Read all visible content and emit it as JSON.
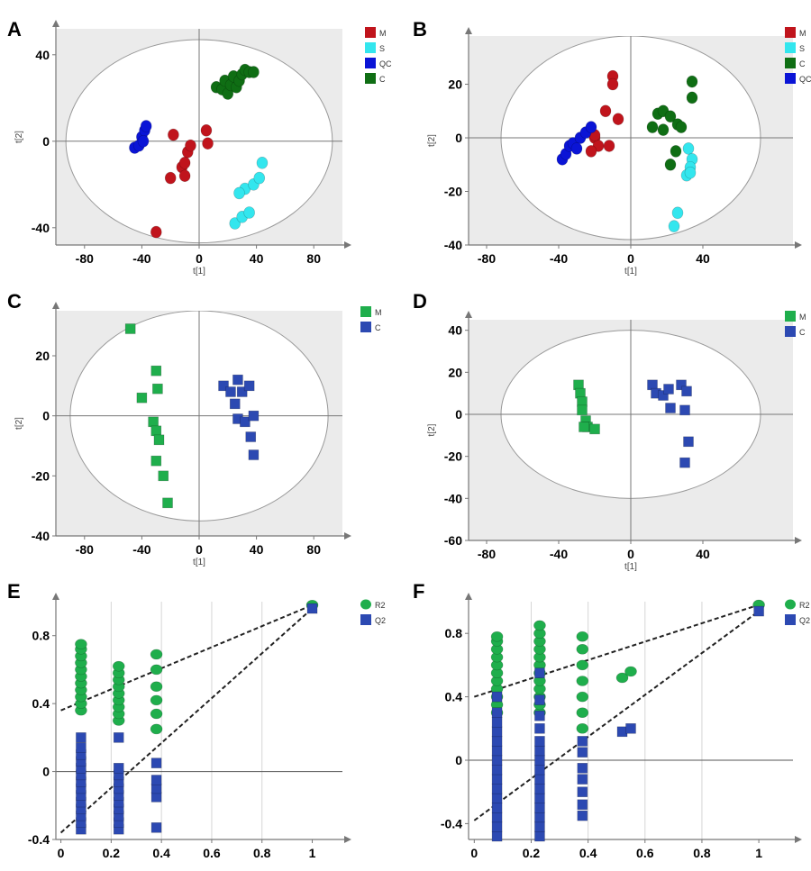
{
  "chart_data": [
    {
      "panel": "A",
      "type": "scatter",
      "xlabel": "t[1]",
      "ylabel": "t[2]",
      "xlim": [
        -100,
        100
      ],
      "ylim": [
        -48,
        52
      ],
      "xticks": [
        -80,
        -40,
        0,
        40,
        80
      ],
      "yticks": [
        -40,
        0,
        40
      ],
      "ellipse": {
        "rx": 93,
        "ry": 47
      },
      "legend": [
        {
          "name": "M",
          "color": "#c0141c"
        },
        {
          "name": "S",
          "color": "#33e6ee"
        },
        {
          "name": "QC",
          "color": "#0a14d6"
        },
        {
          "name": "C",
          "color": "#0f6e14"
        }
      ],
      "series": [
        {
          "name": "M",
          "color": "#c0141c",
          "marker": "circle",
          "points": [
            [
              -30,
              -42
            ],
            [
              -20,
              -17
            ],
            [
              -18,
              3
            ],
            [
              -12,
              -12
            ],
            [
              -10,
              -16
            ],
            [
              -8,
              -5
            ],
            [
              -6,
              -2
            ],
            [
              5,
              5
            ],
            [
              6,
              -1
            ],
            [
              -10,
              -10
            ]
          ]
        },
        {
          "name": "S",
          "color": "#33e6ee",
          "marker": "circle",
          "points": [
            [
              25,
              -38
            ],
            [
              30,
              -35
            ],
            [
              35,
              -33
            ],
            [
              32,
              -22
            ],
            [
              38,
              -20
            ],
            [
              42,
              -17
            ],
            [
              44,
              -10
            ],
            [
              28,
              -24
            ]
          ]
        },
        {
          "name": "QC",
          "color": "#0a14d6",
          "marker": "circle",
          "points": [
            [
              -45,
              -3
            ],
            [
              -42,
              -2
            ],
            [
              -40,
              2
            ],
            [
              -38,
              5
            ],
            [
              -37,
              7
            ],
            [
              -39,
              0
            ]
          ]
        },
        {
          "name": "C",
          "color": "#0f6e14",
          "marker": "circle",
          "points": [
            [
              12,
              25
            ],
            [
              16,
              24
            ],
            [
              18,
              28
            ],
            [
              20,
              22
            ],
            [
              22,
              26
            ],
            [
              24,
              30
            ],
            [
              26,
              25
            ],
            [
              28,
              28
            ],
            [
              30,
              31
            ],
            [
              32,
              33
            ],
            [
              35,
              32
            ],
            [
              38,
              32
            ]
          ]
        }
      ]
    },
    {
      "panel": "B",
      "type": "scatter",
      "xlabel": "t[1]",
      "ylabel": "t[2]",
      "xlim": [
        -90,
        90
      ],
      "ylim": [
        -40,
        38
      ],
      "xticks": [
        -80,
        -40,
        0,
        40
      ],
      "yticks": [
        -40,
        -20,
        0,
        20
      ],
      "ellipse": {
        "rx": 72,
        "ry": 38
      },
      "legend": [
        {
          "name": "M",
          "color": "#c0141c"
        },
        {
          "name": "S",
          "color": "#33e6ee"
        },
        {
          "name": "C",
          "color": "#0f6e14"
        },
        {
          "name": "QC",
          "color": "#0a14d6"
        }
      ],
      "series": [
        {
          "name": "M",
          "color": "#c0141c",
          "marker": "circle",
          "points": [
            [
              -10,
              23
            ],
            [
              -10,
              20
            ],
            [
              -14,
              10
            ],
            [
              -7,
              7
            ],
            [
              -20,
              0
            ],
            [
              -18,
              -3
            ],
            [
              -12,
              -3
            ],
            [
              -22,
              -5
            ],
            [
              -20,
              1
            ]
          ]
        },
        {
          "name": "S",
          "color": "#33e6ee",
          "marker": "circle",
          "points": [
            [
              32,
              -4
            ],
            [
              34,
              -8
            ],
            [
              33,
              -11
            ],
            [
              31,
              -14
            ],
            [
              33,
              -13
            ],
            [
              26,
              -28
            ],
            [
              24,
              -33
            ]
          ]
        },
        {
          "name": "C",
          "color": "#0f6e14",
          "marker": "circle",
          "points": [
            [
              34,
              21
            ],
            [
              34,
              15
            ],
            [
              15,
              9
            ],
            [
              18,
              10
            ],
            [
              12,
              4
            ],
            [
              18,
              3
            ],
            [
              22,
              8
            ],
            [
              26,
              5
            ],
            [
              25,
              -5
            ],
            [
              22,
              -10
            ],
            [
              28,
              4
            ]
          ]
        },
        {
          "name": "QC",
          "color": "#0a14d6",
          "marker": "circle",
          "points": [
            [
              -38,
              -8
            ],
            [
              -36,
              -6
            ],
            [
              -34,
              -3
            ],
            [
              -32,
              -2
            ],
            [
              -28,
              0
            ],
            [
              -25,
              2
            ],
            [
              -22,
              4
            ],
            [
              -30,
              -4
            ]
          ]
        }
      ]
    },
    {
      "panel": "C",
      "type": "scatter",
      "xlabel": "t[1]",
      "ylabel": "t[2]",
      "xlim": [
        -100,
        100
      ],
      "ylim": [
        -40,
        35
      ],
      "xticks": [
        -80,
        -40,
        0,
        40,
        80
      ],
      "yticks": [
        -40,
        -20,
        0,
        20
      ],
      "ellipse": {
        "rx": 90,
        "ry": 35
      },
      "legend": [
        {
          "name": "M",
          "color": "#1fae4c"
        },
        {
          "name": "C",
          "color": "#2c49b2"
        }
      ],
      "series": [
        {
          "name": "M",
          "color": "#1fae4c",
          "marker": "square",
          "points": [
            [
              -48,
              29
            ],
            [
              -30,
              15
            ],
            [
              -29,
              9
            ],
            [
              -40,
              6
            ],
            [
              -32,
              -2
            ],
            [
              -30,
              -5
            ],
            [
              -28,
              -8
            ],
            [
              -30,
              -15
            ],
            [
              -25,
              -20
            ],
            [
              -22,
              -29
            ]
          ]
        },
        {
          "name": "C",
          "color": "#2c49b2",
          "marker": "square",
          "points": [
            [
              17,
              10
            ],
            [
              22,
              8
            ],
            [
              27,
              12
            ],
            [
              30,
              8
            ],
            [
              35,
              10
            ],
            [
              27,
              -1
            ],
            [
              32,
              -2
            ],
            [
              38,
              0
            ],
            [
              36,
              -7
            ],
            [
              38,
              -13
            ],
            [
              25,
              4
            ]
          ]
        }
      ]
    },
    {
      "panel": "D",
      "type": "scatter",
      "xlabel": "t[1]",
      "ylabel": "t[2]",
      "xlim": [
        -90,
        90
      ],
      "ylim": [
        -60,
        45
      ],
      "xticks": [
        -80,
        -40,
        0,
        40
      ],
      "yticks": [
        -60,
        -40,
        -20,
        0,
        20,
        40
      ],
      "ellipse": {
        "rx": 72,
        "ry": 40
      },
      "legend": [
        {
          "name": "M",
          "color": "#1fae4c"
        },
        {
          "name": "C",
          "color": "#2c49b2"
        }
      ],
      "series": [
        {
          "name": "M",
          "color": "#1fae4c",
          "marker": "square",
          "points": [
            [
              -29,
              14
            ],
            [
              -28,
              10
            ],
            [
              -27,
              6
            ],
            [
              -27,
              2
            ],
            [
              -25,
              -3
            ],
            [
              -24,
              -6
            ],
            [
              -20,
              -7
            ],
            [
              -26,
              -6
            ]
          ]
        },
        {
          "name": "C",
          "color": "#2c49b2",
          "marker": "square",
          "points": [
            [
              12,
              14
            ],
            [
              14,
              10
            ],
            [
              18,
              9
            ],
            [
              21,
              12
            ],
            [
              28,
              14
            ],
            [
              31,
              11
            ],
            [
              22,
              3
            ],
            [
              30,
              2
            ],
            [
              32,
              -13
            ],
            [
              30,
              -23
            ]
          ]
        }
      ]
    },
    {
      "panel": "E",
      "type": "scatter",
      "xlim": [
        -0.02,
        1.12
      ],
      "ylim": [
        -0.4,
        1.0
      ],
      "xticks": [
        0,
        0.2,
        0.4,
        0.6,
        0.8,
        1
      ],
      "yticks": [
        -0.4,
        0,
        0.4,
        0.8
      ],
      "legend": [
        {
          "name": "R2",
          "color": "#1fae4c"
        },
        {
          "name": "Q2",
          "color": "#2c49b2"
        }
      ],
      "regression_lines": [
        {
          "name": "R2",
          "points": [
            [
              0,
              0.36
            ],
            [
              1,
              0.98
            ]
          ]
        },
        {
          "name": "Q2",
          "points": [
            [
              0,
              -0.36
            ],
            [
              1,
              0.96
            ]
          ]
        }
      ],
      "vertical_gridlines": [
        0.2,
        0.4,
        0.6,
        0.8
      ],
      "series": [
        {
          "name": "R2",
          "color": "#1fae4c",
          "marker": "circle",
          "columns": [
            {
              "x": 0.08,
              "y": [
                0.36,
                0.4,
                0.44,
                0.48,
                0.52,
                0.56,
                0.6,
                0.64,
                0.68,
                0.72,
                0.75
              ]
            },
            {
              "x": 0.23,
              "y": [
                0.3,
                0.34,
                0.38,
                0.42,
                0.46,
                0.5,
                0.54,
                0.58,
                0.62
              ]
            },
            {
              "x": 0.38,
              "y": [
                0.25,
                0.34,
                0.42,
                0.5,
                0.6,
                0.69
              ]
            }
          ],
          "points": [
            [
              1,
              0.98
            ]
          ]
        },
        {
          "name": "Q2",
          "color": "#2c49b2",
          "marker": "square",
          "columns": [
            {
              "x": 0.08,
              "y": [
                -0.34,
                -0.3,
                -0.26,
                -0.22,
                -0.18,
                -0.14,
                -0.1,
                -0.06,
                -0.02,
                0.02,
                0.06,
                0.1,
                0.14,
                0.2
              ]
            },
            {
              "x": 0.23,
              "y": [
                -0.34,
                -0.3,
                -0.26,
                -0.22,
                -0.18,
                -0.14,
                -0.1,
                -0.06,
                -0.02,
                0.02,
                0.2
              ]
            },
            {
              "x": 0.38,
              "y": [
                -0.33,
                -0.15,
                -0.1,
                -0.05,
                0.05
              ]
            }
          ],
          "points": [
            [
              1,
              0.96
            ]
          ]
        }
      ]
    },
    {
      "panel": "F",
      "type": "scatter",
      "xlim": [
        -0.02,
        1.12
      ],
      "ylim": [
        -0.5,
        1.0
      ],
      "xticks": [
        0,
        0.2,
        0.4,
        0.6,
        0.8,
        1
      ],
      "yticks": [
        -0.4,
        0,
        0.4,
        0.8
      ],
      "legend": [
        {
          "name": "R2",
          "color": "#1fae4c"
        },
        {
          "name": "Q2",
          "color": "#2c49b2"
        }
      ],
      "regression_lines": [
        {
          "name": "R2",
          "points": [
            [
              0,
              0.4
            ],
            [
              1,
              0.98
            ]
          ]
        },
        {
          "name": "Q2",
          "points": [
            [
              0,
              -0.38
            ],
            [
              1,
              0.94
            ]
          ]
        }
      ],
      "vertical_gridlines": [
        0.2,
        0.4,
        0.6,
        0.8
      ],
      "series": [
        {
          "name": "R2",
          "color": "#1fae4c",
          "marker": "circle",
          "columns": [
            {
              "x": 0.08,
              "y": [
                0.3,
                0.35,
                0.4,
                0.45,
                0.5,
                0.55,
                0.6,
                0.65,
                0.7,
                0.75,
                0.78
              ]
            },
            {
              "x": 0.23,
              "y": [
                0.3,
                0.35,
                0.4,
                0.45,
                0.5,
                0.55,
                0.6,
                0.65,
                0.7,
                0.75,
                0.8,
                0.85
              ]
            },
            {
              "x": 0.38,
              "y": [
                0.2,
                0.3,
                0.4,
                0.5,
                0.6,
                0.7,
                0.78
              ]
            }
          ],
          "points": [
            [
              0.52,
              0.52
            ],
            [
              0.55,
              0.56
            ],
            [
              1,
              0.98
            ]
          ]
        },
        {
          "name": "Q2",
          "color": "#2c49b2",
          "marker": "square",
          "columns": [
            {
              "x": 0.08,
              "y": [
                -0.48,
                -0.42,
                -0.36,
                -0.3,
                -0.24,
                -0.18,
                -0.12,
                -0.06,
                0,
                0.06,
                0.12,
                0.18,
                0.24,
                0.3,
                0.4
              ]
            },
            {
              "x": 0.23,
              "y": [
                -0.48,
                -0.42,
                -0.36,
                -0.3,
                -0.24,
                -0.18,
                -0.12,
                -0.06,
                0,
                0.06,
                0.12,
                0.2,
                0.28,
                0.38,
                0.55
              ]
            },
            {
              "x": 0.38,
              "y": [
                -0.35,
                -0.28,
                -0.2,
                -0.12,
                -0.05,
                0.05,
                0.12
              ]
            }
          ],
          "points": [
            [
              0.52,
              0.18
            ],
            [
              0.55,
              0.2
            ],
            [
              1,
              0.94
            ]
          ]
        }
      ]
    }
  ]
}
